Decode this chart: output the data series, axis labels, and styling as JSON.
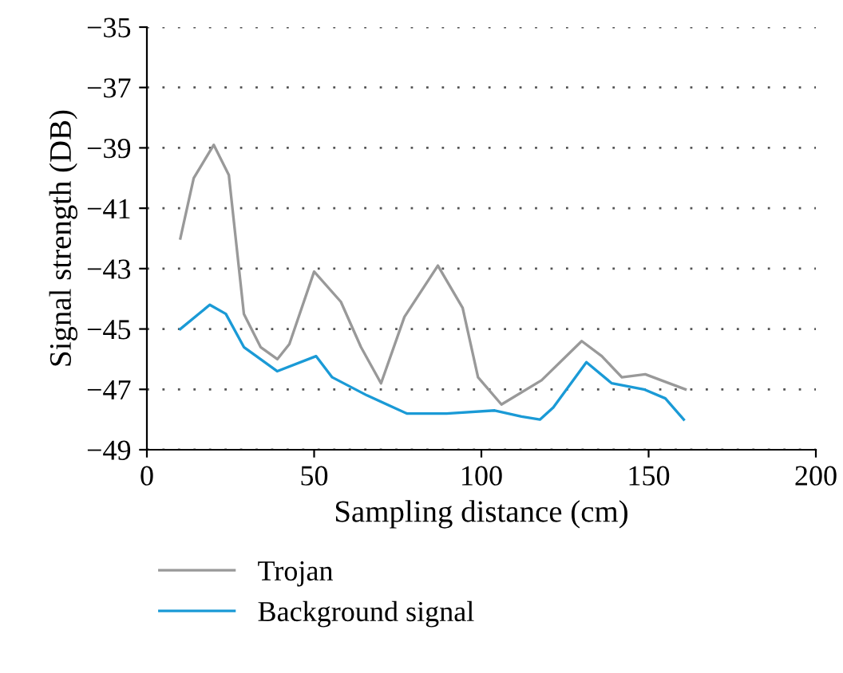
{
  "chart_data": {
    "type": "line",
    "xlabel": "Sampling distance (cm)",
    "ylabel": "Signal strength (DB)",
    "xlim": [
      0,
      200
    ],
    "xticks": [
      0,
      50,
      100,
      150,
      200
    ],
    "ylim": [
      -49,
      -35
    ],
    "yticks": [
      {
        "value": -49,
        "label": "−49"
      },
      {
        "value": -47,
        "label": "−47"
      },
      {
        "value": -45,
        "label": "−45"
      },
      {
        "value": -43,
        "label": "−43"
      },
      {
        "value": -41,
        "label": "−41"
      },
      {
        "value": -39,
        "label": "−39"
      },
      {
        "value": -37,
        "label": "−37"
      },
      {
        "value": -35,
        "label": "−35"
      }
    ],
    "grid": "y",
    "legend": "bottom left",
    "marker": "none",
    "line_style": "solid",
    "series": [
      {
        "name": "Trojan",
        "color": "#999999",
        "x": [
          10,
          14,
          20,
          24.5,
          29,
          34,
          39,
          42.6,
          50,
          58,
          64,
          70,
          77,
          87,
          94.4,
          99,
          106,
          118,
          130,
          136,
          142,
          149,
          161
        ],
        "values": [
          -42.0,
          -40.0,
          -38.9,
          -39.9,
          -44.5,
          -45.6,
          -46.0,
          -45.5,
          -43.1,
          -44.1,
          -45.6,
          -46.8,
          -44.6,
          -42.9,
          -44.3,
          -46.6,
          -47.5,
          -46.7,
          -45.4,
          -45.9,
          -46.6,
          -46.5,
          -47.0
        ]
      },
      {
        "name": "Background signal",
        "color": "#1a9ad6",
        "x": [
          10,
          18.8,
          23.6,
          29,
          39,
          50.6,
          55.4,
          65.8,
          77.7,
          89.6,
          104,
          112,
          117.5,
          121.5,
          131.4,
          139,
          148.6,
          155,
          160.5
        ],
        "values": [
          -45.0,
          -44.2,
          -44.5,
          -45.6,
          -46.4,
          -45.9,
          -46.6,
          -47.2,
          -47.8,
          -47.8,
          -47.7,
          -47.9,
          -48.0,
          -47.6,
          -46.1,
          -46.8,
          -47.0,
          -47.3,
          -48.0
        ]
      }
    ]
  }
}
